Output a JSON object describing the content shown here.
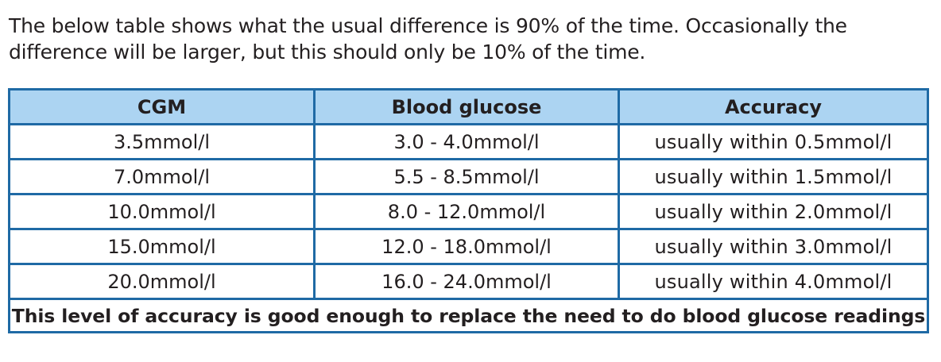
{
  "intro": {
    "line1": "The below table shows what the usual difference is 90% of the time. Occasionally the",
    "line2": "difference will be larger, but this should only be 10% of the time."
  },
  "table": {
    "headers": [
      "CGM",
      "Blood glucose",
      "Accuracy"
    ],
    "rows": [
      {
        "cgm": "3.5mmol/l",
        "blood_glucose": "3.0 - 4.0mmol/l",
        "accuracy": "usually within 0.5mmol/l"
      },
      {
        "cgm": "7.0mmol/l",
        "blood_glucose": "5.5 - 8.5mmol/l",
        "accuracy": "usually within 1.5mmol/l"
      },
      {
        "cgm": "10.0mmol/l",
        "blood_glucose": "8.0 - 12.0mmol/l",
        "accuracy": "usually within 2.0mmol/l"
      },
      {
        "cgm": "15.0mmol/l",
        "blood_glucose": "12.0 - 18.0mmol/l",
        "accuracy": "usually within 3.0mmol/l"
      },
      {
        "cgm": "20.0mmol/l",
        "blood_glucose": "16.0 - 24.0mmol/l",
        "accuracy": "usually within 4.0mmol/l"
      }
    ],
    "footer": "This level of accuracy is good enough to replace the need to do blood glucose readings"
  },
  "colors": {
    "border": "#1f6aa5",
    "header_fill": "#acd4f2",
    "text": "#231f20"
  }
}
